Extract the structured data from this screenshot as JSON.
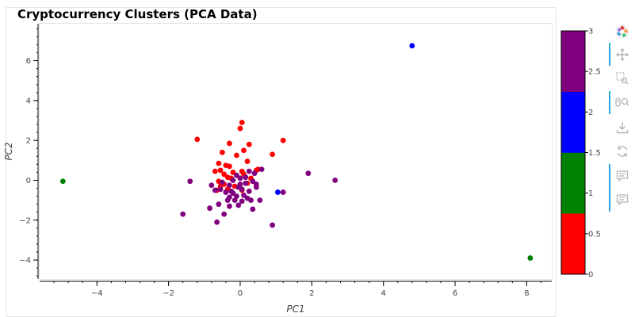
{
  "chart_data": {
    "type": "scatter",
    "title": "Cryptocurrency Clusters (PCA Data)",
    "xlabel": "PC1",
    "ylabel": "PC2",
    "xlim": [
      -5.6,
      8.7
    ],
    "ylim": [
      -4.95,
      7.85
    ],
    "xticks": [
      -4,
      -2,
      0,
      2,
      4,
      6,
      8
    ],
    "yticks": [
      -4,
      -2,
      0,
      2,
      4,
      6
    ],
    "xtick_labels": [
      "−4",
      "−2",
      "0",
      "2",
      "4",
      "6",
      "8"
    ],
    "ytick_labels": [
      "−4",
      "−2",
      "0",
      "2",
      "4",
      "6"
    ],
    "colorbar": {
      "range": [
        0,
        3
      ],
      "ticks": [
        0,
        0.5,
        1,
        1.5,
        2,
        2.5,
        3
      ],
      "tick_labels": [
        "0",
        "0.5",
        "1",
        "1.5",
        "2",
        "2.5",
        "3"
      ],
      "palette": [
        "#ff0000",
        "#008000",
        "#0000ff",
        "#800080"
      ]
    },
    "series": [
      {
        "cluster": 0,
        "color": "#ff0000",
        "points": [
          [
            0.05,
            2.9
          ],
          [
            0.0,
            2.6
          ],
          [
            -1.2,
            2.05
          ],
          [
            1.2,
            2.0
          ],
          [
            -0.3,
            1.85
          ],
          [
            0.25,
            1.8
          ],
          [
            0.1,
            1.5
          ],
          [
            -0.5,
            1.4
          ],
          [
            0.9,
            1.3
          ],
          [
            -0.1,
            1.25
          ],
          [
            -0.6,
            0.85
          ],
          [
            0.2,
            0.95
          ],
          [
            -0.4,
            0.75
          ],
          [
            -0.3,
            0.7
          ],
          [
            0.45,
            0.5
          ],
          [
            -0.55,
            0.5
          ],
          [
            0.05,
            0.45
          ],
          [
            -0.7,
            0.45
          ],
          [
            0.5,
            0.55
          ],
          [
            -0.2,
            0.4
          ],
          [
            -0.45,
            0.3
          ],
          [
            0.1,
            0.3
          ],
          [
            -0.35,
            0.15
          ],
          [
            -0.25,
            0.1
          ],
          [
            0.3,
            0.1
          ],
          [
            -0.6,
            -0.05
          ],
          [
            -0.45,
            -0.2
          ],
          [
            0.2,
            -0.15
          ],
          [
            -0.55,
            -0.3
          ],
          [
            -0.15,
            -0.3
          ],
          [
            -0.35,
            -0.45
          ],
          [
            -0.65,
            -0.5
          ],
          [
            0.05,
            -0.5
          ]
        ]
      },
      {
        "cluster": 1,
        "color": "#008000",
        "points": [
          [
            -4.95,
            -0.05
          ],
          [
            8.1,
            -3.9
          ]
        ]
      },
      {
        "cluster": 2,
        "color": "#0000ff",
        "points": [
          [
            4.8,
            6.75
          ],
          [
            1.05,
            -0.6
          ]
        ]
      },
      {
        "cluster": 3,
        "color": "#800080",
        "points": [
          [
            0.6,
            0.55
          ],
          [
            0.25,
            0.45
          ],
          [
            0.4,
            0.35
          ],
          [
            -0.1,
            0.25
          ],
          [
            0.0,
            0.1
          ],
          [
            -0.2,
            0.0
          ],
          [
            0.35,
            -0.05
          ],
          [
            0.15,
            -0.15
          ],
          [
            -0.5,
            -0.1
          ],
          [
            0.45,
            -0.2
          ],
          [
            -0.3,
            -0.25
          ],
          [
            -0.05,
            -0.35
          ],
          [
            0.05,
            -0.45
          ],
          [
            0.25,
            -0.55
          ],
          [
            -0.4,
            -0.6
          ],
          [
            -0.2,
            -0.65
          ],
          [
            0.1,
            -0.75
          ],
          [
            -0.1,
            -0.8
          ],
          [
            -0.3,
            -0.85
          ],
          [
            0.2,
            -0.9
          ],
          [
            -0.15,
            -1.0
          ],
          [
            0.05,
            -1.05
          ],
          [
            -0.55,
            -0.45
          ],
          [
            -0.8,
            -0.25
          ],
          [
            -0.6,
            -1.2
          ],
          [
            -0.85,
            -1.4
          ],
          [
            -0.3,
            -1.3
          ],
          [
            -0.05,
            -1.25
          ],
          [
            0.35,
            -1.45
          ],
          [
            0.55,
            -1.0
          ],
          [
            0.3,
            -1.0
          ],
          [
            -0.45,
            -1.7
          ],
          [
            -0.65,
            -2.1
          ],
          [
            -1.6,
            -1.7
          ],
          [
            -0.7,
            -0.5
          ],
          [
            0.9,
            -2.25
          ],
          [
            -1.4,
            -0.05
          ],
          [
            1.2,
            -0.6
          ],
          [
            1.9,
            0.35
          ],
          [
            2.65,
            0.0
          ],
          [
            0.0,
            -0.2
          ],
          [
            -0.25,
            -0.55
          ],
          [
            0.45,
            -0.35
          ],
          [
            0.15,
            0.15
          ],
          [
            -0.35,
            -1.0
          ]
        ]
      }
    ]
  },
  "toolbar": {
    "logo": "bokeh-logo-icon",
    "tools": [
      {
        "name": "pan-icon",
        "active": true
      },
      {
        "name": "box-zoom-icon",
        "active": false
      },
      {
        "name": "wheel-zoom-icon",
        "active": true
      },
      {
        "name": "save-icon",
        "active": false
      },
      {
        "name": "reset-icon",
        "active": false
      },
      {
        "name": "hover-icon",
        "active": true
      },
      {
        "name": "hover-icon-2",
        "active": false
      }
    ]
  }
}
